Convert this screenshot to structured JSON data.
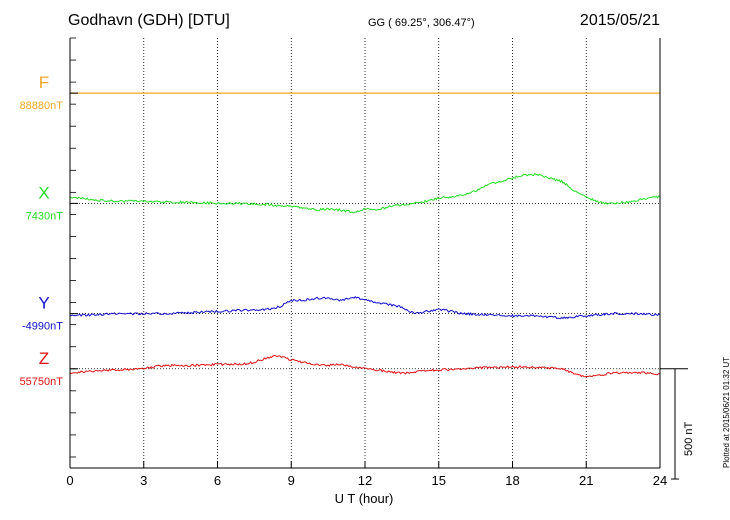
{
  "header": {
    "station": "Godhavn (GDH)  [DTU]",
    "coords": "GG ( 69.25°, 306.47°)",
    "date": "2015/05/21"
  },
  "plotted_note": "Plotted at 2015/06/21 01:32 UT",
  "colors": {
    "F": "#f5a623",
    "X": "#22dd22",
    "Y": "#1010cc",
    "Z": "#dd1111",
    "grid": "#000000"
  },
  "chart_data": {
    "type": "line",
    "xlabel": "U T (hour)",
    "xlim": [
      0,
      24
    ],
    "xticks": [
      0,
      3,
      6,
      9,
      12,
      15,
      18,
      21,
      24
    ],
    "tick_labels": [
      "0",
      "3",
      "6",
      "9",
      "12",
      "15",
      "18",
      "21",
      "24"
    ],
    "scale_label": "500 nT",
    "ylim_nT": [
      -950,
      1000
    ],
    "series": [
      {
        "name": "F",
        "baseline": "88880nT",
        "offset_nT": 750,
        "x": [
          0,
          24
        ],
        "y": [
          0,
          0
        ]
      },
      {
        "name": "X",
        "baseline": "7430nT",
        "offset_nT": 250,
        "x": [
          0,
          1,
          2,
          3,
          4,
          5,
          6,
          7,
          8,
          9,
          9.5,
          10,
          10.5,
          11,
          11.5,
          12,
          12.5,
          13,
          13.5,
          14,
          14.5,
          15,
          15.5,
          16,
          16.5,
          17,
          17.5,
          18,
          18.5,
          19,
          19.5,
          20,
          20.5,
          21,
          21.5,
          22,
          22.5,
          23,
          23.5,
          24
        ],
        "y": [
          30,
          15,
          10,
          10,
          5,
          5,
          0,
          0,
          -5,
          -15,
          -20,
          -30,
          -25,
          -30,
          -40,
          -25,
          -30,
          -15,
          -5,
          0,
          10,
          25,
          30,
          40,
          55,
          85,
          100,
          115,
          130,
          130,
          115,
          100,
          60,
          30,
          5,
          0,
          5,
          10,
          25,
          30
        ]
      },
      {
        "name": "Y",
        "baseline": "-4990nT",
        "offset_nT": -250,
        "x": [
          0,
          1,
          2,
          3,
          4,
          5,
          6,
          7,
          8,
          8.5,
          9,
          9.5,
          10,
          10.5,
          11,
          11.5,
          12,
          12.5,
          13,
          13.5,
          14,
          14.5,
          15,
          15.5,
          16,
          17,
          18,
          19,
          20,
          20.5,
          21,
          22,
          23,
          24
        ],
        "y": [
          -10,
          -5,
          0,
          0,
          0,
          5,
          10,
          15,
          20,
          30,
          60,
          60,
          70,
          70,
          60,
          75,
          65,
          50,
          40,
          30,
          0,
          10,
          20,
          10,
          0,
          -5,
          -10,
          -10,
          -20,
          -15,
          -10,
          0,
          0,
          -5
        ]
      },
      {
        "name": "Z",
        "baseline": "55750nT",
        "offset_nT": -500,
        "x": [
          0,
          1,
          2,
          3,
          3.5,
          4,
          5,
          6,
          7,
          7.5,
          8,
          8.5,
          9,
          9.5,
          10,
          10.5,
          11,
          11.5,
          12,
          12.5,
          13,
          13.5,
          14,
          15,
          16,
          17,
          18,
          19,
          20,
          20.5,
          21,
          21.5,
          22,
          23,
          24
        ],
        "y": [
          -20,
          -10,
          -5,
          0,
          10,
          15,
          15,
          20,
          20,
          30,
          50,
          60,
          40,
          30,
          20,
          15,
          20,
          10,
          0,
          -5,
          -15,
          -20,
          -15,
          -5,
          0,
          5,
          10,
          5,
          0,
          -20,
          -40,
          -30,
          -20,
          -15,
          -25
        ]
      }
    ]
  }
}
